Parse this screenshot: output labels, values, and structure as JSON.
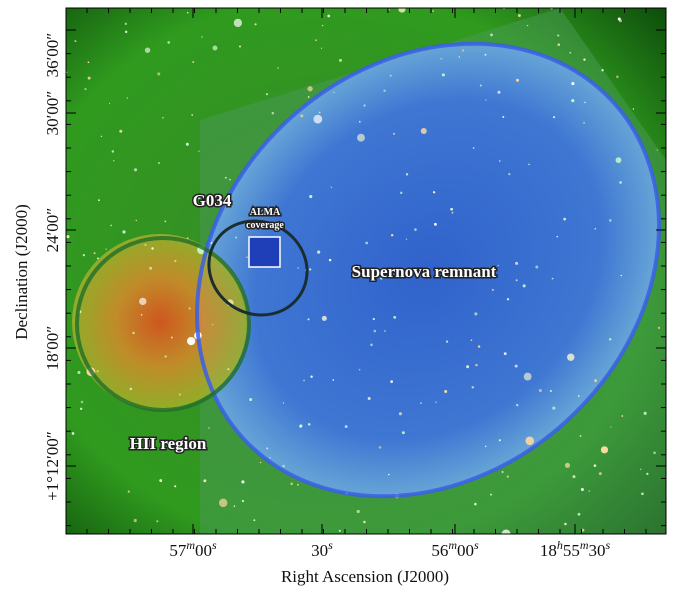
{
  "x_axis": {
    "label": "Right Ascension (J2000)",
    "ticks": [
      [
        "57",
        "m",
        "00",
        "s"
      ],
      [
        "30",
        "s"
      ],
      [
        "56",
        "m",
        "00",
        "s"
      ],
      [
        "18",
        "h",
        "55",
        "m",
        "30",
        "s"
      ]
    ]
  },
  "y_axis": {
    "label": "Declination (J2000)",
    "ticks": [
      "+1°12′00″",
      "18′00″",
      "24′00″",
      "30′00″",
      "36′00″"
    ]
  },
  "annotations": {
    "g034": "G034",
    "alma": [
      "ALMA",
      "coverage"
    ],
    "snr": "Supernova remnant",
    "hii": "HII region"
  }
}
